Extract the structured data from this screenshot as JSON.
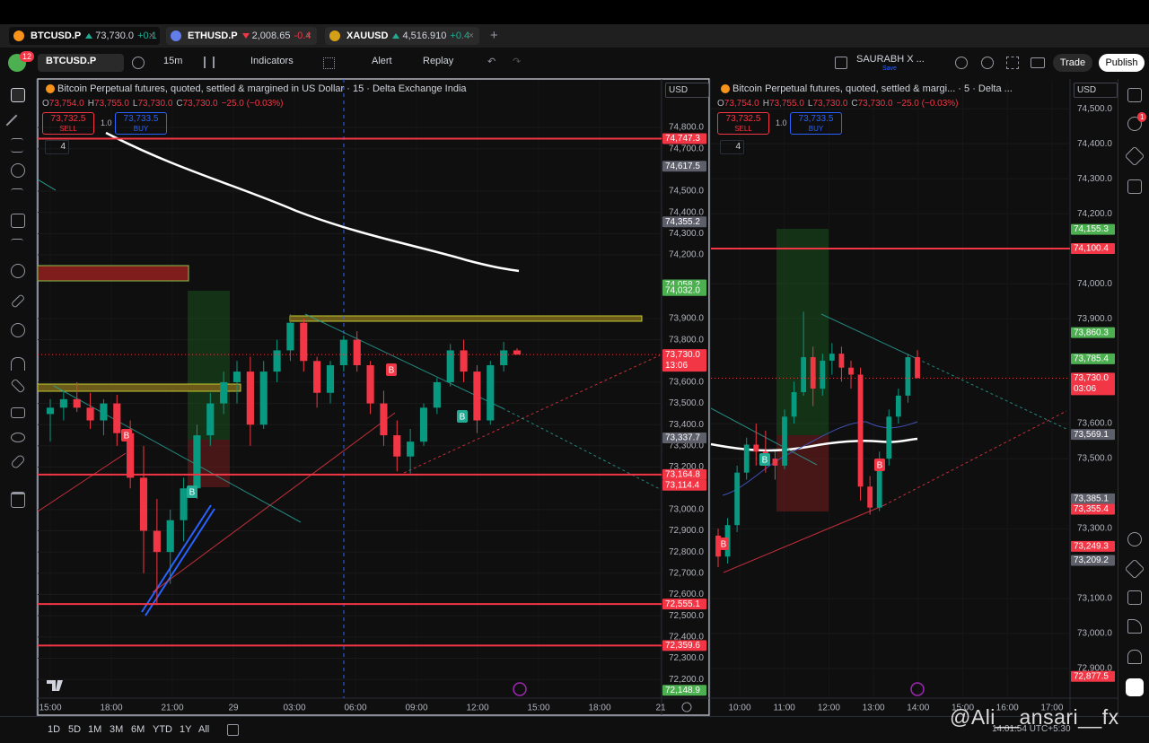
{
  "tabs": [
    {
      "symbol": "BTCUSD.P",
      "price": "73,730.0",
      "change": "+0.1",
      "trend": "up"
    },
    {
      "symbol": "ETHUSD.P",
      "price": "2,008.65",
      "change": "-0.4",
      "trend": "down"
    },
    {
      "symbol": "XAUUSD",
      "price": "4,516.910",
      "change": "+0.4",
      "trend": "up"
    }
  ],
  "toolbar": {
    "badge": "12",
    "symbol": "BTCUSD.P",
    "interval": "15m",
    "indicators": "Indicators",
    "alert": "Alert",
    "replay": "Replay",
    "layout_name": "SAURABH X ...",
    "layout_status": "Save",
    "trade": "Trade",
    "publish": "Publish"
  },
  "sidebar_badge": "1",
  "charts": [
    {
      "title": "Bitcoin Perpetual futures, quoted, settled & margined in US Dollar · 15 · Delta Exchange India",
      "ohlc": [
        {
          "k": "O",
          "v": "73,754.0"
        },
        {
          "k": "H",
          "v": "73,755.0"
        },
        {
          "k": "L",
          "v": "73,730.0"
        },
        {
          "k": "C",
          "v": "73,730.0"
        }
      ],
      "change": "−25.0 (−0.03%)",
      "sell_price": "73,732.5",
      "sell_label": "SELL",
      "qty": "1.0",
      "buy_price": "73,733.5",
      "buy_label": "BUY",
      "indicator_count": "4",
      "currency": "USD",
      "ylim": [
        72116,
        75020
      ],
      "yticks": [
        {
          "value": 74800,
          "label": "74,800.0"
        },
        {
          "value": 74700,
          "label": "74,700.0"
        },
        {
          "value": 74500,
          "label": "74,500.0"
        },
        {
          "value": 74400,
          "label": "74,400.0"
        },
        {
          "value": 74300,
          "label": "74,300.0"
        },
        {
          "value": 74200,
          "label": "74,200.0"
        },
        {
          "value": 73900,
          "label": "73,900.0"
        },
        {
          "value": 73800,
          "label": "73,800.0"
        },
        {
          "value": 73600,
          "label": "73,600.0"
        },
        {
          "value": 73500,
          "label": "73,500.0"
        },
        {
          "value": 73400,
          "label": "73,400.0"
        },
        {
          "value": 73300,
          "label": "73,300.0"
        },
        {
          "value": 73200,
          "label": "73,200.0"
        },
        {
          "value": 73000,
          "label": "73,000.0"
        },
        {
          "value": 72900,
          "label": "72,900.0"
        },
        {
          "value": 72800,
          "label": "72,800.0"
        },
        {
          "value": 72700,
          "label": "72,700.0"
        },
        {
          "value": 72600,
          "label": "72,600.0"
        },
        {
          "value": 72500,
          "label": "72,500.0"
        },
        {
          "value": 72400,
          "label": "72,400.0"
        },
        {
          "value": 72300,
          "label": "72,300.0"
        },
        {
          "value": 72200,
          "label": "72,200.0"
        }
      ],
      "xticks": [
        "15:00",
        "18:00",
        "21:00",
        "29",
        "03:00",
        "06:00",
        "09:00",
        "12:00",
        "15:00",
        "18:00",
        "21"
      ],
      "price_tags": [
        {
          "value": 74747.3,
          "label": "74,747.3",
          "kind": "red",
          "line": true
        },
        {
          "value": 74617.5,
          "label": "74,617.5",
          "kind": "grey",
          "line": false
        },
        {
          "value": 74355.2,
          "label": "74,355.2",
          "kind": "grey",
          "line": false
        },
        {
          "value": 74058.2,
          "label": "74,058.2",
          "kind": "green",
          "line": false
        },
        {
          "value": 74032.0,
          "label": "74,032.0",
          "kind": "green",
          "line": false
        },
        {
          "value": 73730.0,
          "label": "73,730.0",
          "kind": "red",
          "line": false,
          "sub": "13:06"
        },
        {
          "value": 73337.7,
          "label": "73,337.7",
          "kind": "grey",
          "line": false
        },
        {
          "value": 73164.8,
          "label": "73,164.8",
          "kind": "red",
          "line": true
        },
        {
          "value": 73114.4,
          "label": "73,114.4",
          "kind": "red",
          "line": false
        },
        {
          "value": 72555.1,
          "label": "72,555.1",
          "kind": "red",
          "line": true
        },
        {
          "value": 72359.6,
          "label": "72,359.6",
          "kind": "red",
          "line": true
        },
        {
          "value": 72148.9,
          "label": "72,148.9",
          "kind": "green",
          "line": false
        }
      ],
      "signals": [
        "B",
        "B",
        "B",
        "B"
      ],
      "candles": [
        [
          73450,
          73520,
          73320,
          73480
        ],
        [
          73480,
          73560,
          73420,
          73520
        ],
        [
          73520,
          73600,
          73460,
          73480
        ],
        [
          73480,
          73550,
          73380,
          73420
        ],
        [
          73420,
          73520,
          73350,
          73500
        ],
        [
          73500,
          73540,
          73300,
          73360
        ],
        [
          73360,
          73420,
          73100,
          73150
        ],
        [
          73150,
          73300,
          72700,
          72900
        ],
        [
          72900,
          73050,
          72550,
          72800
        ],
        [
          72800,
          73000,
          72650,
          72950
        ],
        [
          72950,
          73150,
          72850,
          73100
        ],
        [
          73100,
          73400,
          73050,
          73350
        ],
        [
          73350,
          73550,
          73300,
          73500
        ],
        [
          73500,
          73650,
          73450,
          73600
        ],
        [
          73600,
          73700,
          73500,
          73650
        ],
        [
          73650,
          73720,
          73300,
          73400
        ],
        [
          73400,
          73700,
          73380,
          73650
        ],
        [
          73650,
          73800,
          73600,
          73750
        ],
        [
          73750,
          73920,
          73700,
          73880
        ],
        [
          73880,
          73900,
          73650,
          73700
        ],
        [
          73700,
          73720,
          73480,
          73550
        ],
        [
          73550,
          73700,
          73500,
          73680
        ],
        [
          73680,
          73820,
          73650,
          73800
        ],
        [
          73800,
          73840,
          73650,
          73680
        ],
        [
          73680,
          73700,
          73450,
          73500
        ],
        [
          73500,
          73560,
          73300,
          73350
        ],
        [
          73350,
          73420,
          73180,
          73250
        ],
        [
          73250,
          73380,
          73170,
          73320
        ],
        [
          73320,
          73500,
          73300,
          73480
        ],
        [
          73480,
          73620,
          73450,
          73600
        ],
        [
          73600,
          73780,
          73580,
          73750
        ],
        [
          73750,
          73800,
          73600,
          73650
        ],
        [
          73650,
          73680,
          73360,
          73420
        ],
        [
          73420,
          73700,
          73400,
          73680
        ],
        [
          73680,
          73790,
          73650,
          73750
        ],
        [
          73750,
          73760,
          73730,
          73730
        ]
      ]
    },
    {
      "title": "Bitcoin Perpetual futures, quoted, settled & margi... · 5 · Delta ...",
      "ohlc": [
        {
          "k": "O",
          "v": "73,754.0"
        },
        {
          "k": "H",
          "v": "73,755.0"
        },
        {
          "k": "L",
          "v": "73,730.0"
        },
        {
          "k": "C",
          "v": "73,730.0"
        }
      ],
      "change": "−25.0 (−0.03%)",
      "sell_price": "73,732.5",
      "sell_label": "SELL",
      "qty": "1.0",
      "buy_price": "73,733.5",
      "buy_label": "BUY",
      "indicator_count": "4",
      "currency": "USD",
      "ylim": [
        72818,
        74580
      ],
      "yticks": [
        {
          "value": 74500,
          "label": "74,500.0"
        },
        {
          "value": 74400,
          "label": "74,400.0"
        },
        {
          "value": 74300,
          "label": "74,300.0"
        },
        {
          "value": 74200,
          "label": "74,200.0"
        },
        {
          "value": 74000,
          "label": "74,000.0"
        },
        {
          "value": 73900,
          "label": "73,900.0"
        },
        {
          "value": 73600,
          "label": "73,600.0"
        },
        {
          "value": 73500,
          "label": "73,500.0"
        },
        {
          "value": 73300,
          "label": "73,300.0"
        },
        {
          "value": 73100,
          "label": "73,100.0"
        },
        {
          "value": 73000,
          "label": "73,000.0"
        },
        {
          "value": 72900,
          "label": "72,900.0"
        }
      ],
      "xticks": [
        "10:00",
        "11:00",
        "12:00",
        "13:00",
        "14:00",
        "15:00",
        "16:00",
        "17:00"
      ],
      "price_tags": [
        {
          "value": 74155.3,
          "label": "74,155.3",
          "kind": "green",
          "line": false
        },
        {
          "value": 74100.4,
          "label": "74,100.4",
          "kind": "red",
          "line": true
        },
        {
          "value": 73860.3,
          "label": "73,860.3",
          "kind": "green",
          "line": false
        },
        {
          "value": 73785.4,
          "label": "73,785.4",
          "kind": "green",
          "line": false
        },
        {
          "value": 73730.0,
          "label": "73,730.0",
          "kind": "red",
          "line": false,
          "sub": "03:06"
        },
        {
          "value": 73569.1,
          "label": "73,569.1",
          "kind": "grey",
          "line": false
        },
        {
          "value": 73385.1,
          "label": "73,385.1",
          "kind": "grey",
          "line": false
        },
        {
          "value": 73355.4,
          "label": "73,355.4",
          "kind": "red",
          "line": false
        },
        {
          "value": 73249.3,
          "label": "73,249.3",
          "kind": "red",
          "line": false
        },
        {
          "value": 73209.2,
          "label": "73,209.2",
          "kind": "grey",
          "line": false
        },
        {
          "value": 72877.5,
          "label": "72,877.5",
          "kind": "red",
          "line": false
        }
      ],
      "signals": [
        "B",
        "B",
        "B"
      ],
      "candles": [
        [
          73280,
          73300,
          73190,
          73220
        ],
        [
          73220,
          73330,
          73200,
          73310
        ],
        [
          73310,
          73480,
          73290,
          73460
        ],
        [
          73460,
          73560,
          73440,
          73540
        ],
        [
          73540,
          73600,
          73480,
          73520
        ],
        [
          73520,
          73580,
          73460,
          73500
        ],
        [
          73500,
          73520,
          73440,
          73480
        ],
        [
          73480,
          73640,
          73470,
          73620
        ],
        [
          73620,
          73720,
          73600,
          73690
        ],
        [
          73690,
          73920,
          73680,
          73790
        ],
        [
          73790,
          73820,
          73650,
          73700
        ],
        [
          73700,
          73800,
          73680,
          73780
        ],
        [
          73780,
          73830,
          73740,
          73800
        ],
        [
          73800,
          73820,
          73720,
          73760
        ],
        [
          73760,
          73780,
          73700,
          73740
        ],
        [
          73740,
          73760,
          73380,
          73420
        ],
        [
          73420,
          73450,
          73340,
          73360
        ],
        [
          73360,
          73520,
          73350,
          73500
        ],
        [
          73500,
          73640,
          73480,
          73620
        ],
        [
          73620,
          73700,
          73600,
          73680
        ],
        [
          73680,
          73800,
          73660,
          73790
        ],
        [
          73790,
          73810,
          73730,
          73730
        ]
      ]
    }
  ],
  "bottom": {
    "ranges": [
      "1D",
      "5D",
      "1M",
      "3M",
      "6M",
      "YTD",
      "1Y",
      "All"
    ],
    "clock": "14:01:54 UTC+5:30"
  },
  "watermark": "@Ali__ansari__fx"
}
